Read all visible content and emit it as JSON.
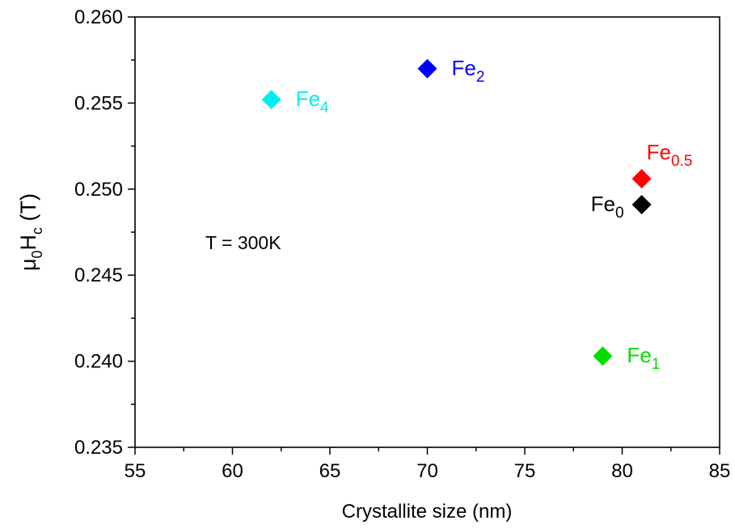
{
  "chart_data": {
    "type": "scatter",
    "title": "",
    "xlabel": "Crystallite size (nm)",
    "ylabel": {
      "base": "μ",
      "sub1": "0",
      "mid": "H",
      "sub2": "c",
      "tail": " (T)"
    },
    "xlim": [
      55,
      85
    ],
    "ylim": [
      0.235,
      0.26
    ],
    "x_ticks": [
      "55",
      "60",
      "65",
      "70",
      "75",
      "80",
      "85"
    ],
    "y_ticks": [
      "0.235",
      "0.240",
      "0.245",
      "0.250",
      "0.255",
      "0.260"
    ],
    "grid": false,
    "marker": "diamond",
    "annotation": "T = 300K",
    "points": [
      {
        "label_base": "Fe",
        "label_sub": "0",
        "x": 81,
        "y": 0.2491,
        "color": "#000000",
        "label_side": "left"
      },
      {
        "label_base": "Fe",
        "label_sub": "0.5",
        "x": 81,
        "y": 0.2506,
        "color": "#ff0000",
        "label_side": "above"
      },
      {
        "label_base": "Fe",
        "label_sub": "1",
        "x": 79,
        "y": 0.2403,
        "color": "#00dd00",
        "label_side": "right"
      },
      {
        "label_base": "Fe",
        "label_sub": "2",
        "x": 70,
        "y": 0.257,
        "color": "#0000ff",
        "label_side": "right"
      },
      {
        "label_base": "Fe",
        "label_sub": "4",
        "x": 62,
        "y": 0.2552,
        "color": "#00eeee",
        "label_side": "right"
      }
    ]
  }
}
